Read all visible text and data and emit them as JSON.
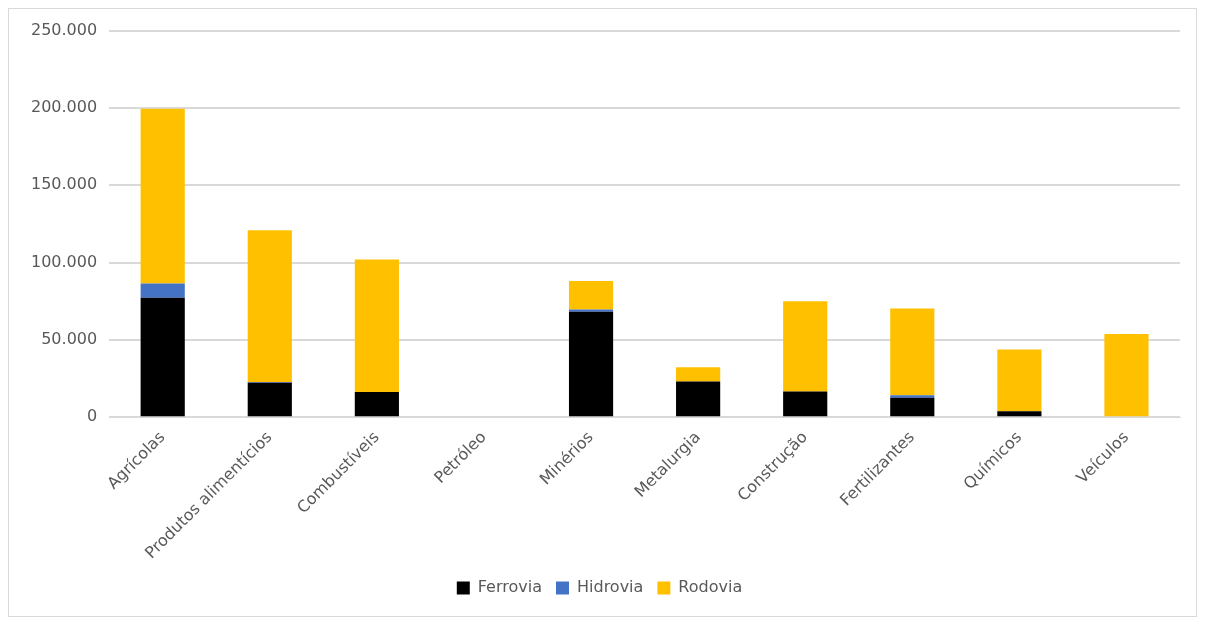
{
  "chart_data": {
    "type": "bar",
    "stacked": true,
    "categories": [
      "Agrícolas",
      "Produtos alimentícios",
      "Combustíveis",
      "Petróleo",
      "Minérios",
      "Metalurgia",
      "Construção",
      "Fertilizantes",
      "Químicos",
      "Veículos"
    ],
    "series": [
      {
        "name": "Ferrovia",
        "color": "#000000",
        "values": [
          77200,
          22200,
          16300,
          0,
          68100,
          23100,
          16600,
          12500,
          3800,
          0
        ]
      },
      {
        "name": "Hidrovia",
        "color": "#4472c4",
        "values": [
          9200,
          500,
          0,
          0,
          1600,
          0,
          0,
          1600,
          0,
          0
        ]
      },
      {
        "name": "Rodovia",
        "color": "#ffc000",
        "values": [
          113100,
          98100,
          85600,
          0,
          18400,
          9100,
          58400,
          56200,
          40000,
          53800
        ]
      }
    ],
    "ylim": [
      0,
      250000
    ],
    "yticks": [
      {
        "value": 0,
        "label": "0"
      },
      {
        "value": 50000,
        "label": "50.000"
      },
      {
        "value": 100000,
        "label": "100.000"
      },
      {
        "value": 150000,
        "label": "150.000"
      },
      {
        "value": 200000,
        "label": "200.000"
      },
      {
        "value": 250000,
        "label": "250.000"
      }
    ],
    "grid": "y",
    "legend": "bottom"
  }
}
